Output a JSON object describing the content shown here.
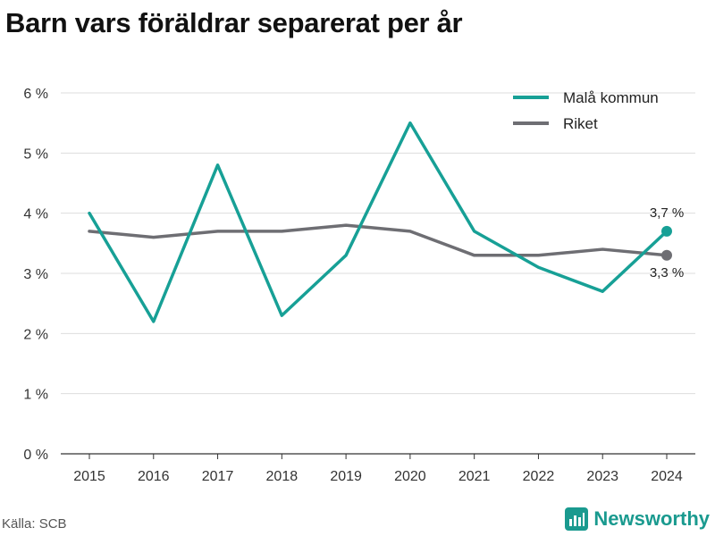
{
  "title": "Barn vars föräldrar separerat per år",
  "source": "Källa: SCB",
  "brand": {
    "name": "Newsworthy",
    "icon": "newsworthy-logo-icon",
    "color": "#1a9a8f"
  },
  "chart_data": {
    "type": "line",
    "title": "Barn vars föräldrar separerat per år",
    "x": [
      "2015",
      "2016",
      "2017",
      "2018",
      "2019",
      "2020",
      "2021",
      "2022",
      "2023",
      "2024"
    ],
    "ylim": [
      0,
      6
    ],
    "yticks": [
      "0 %",
      "1 %",
      "2 %",
      "3 %",
      "4 %",
      "5 %",
      "6 %"
    ],
    "grid": true,
    "legend": "top-right",
    "series": [
      {
        "name": "Malå kommun",
        "color": "#17a096",
        "values": [
          4.0,
          2.2,
          4.8,
          2.3,
          3.3,
          5.5,
          3.7,
          3.1,
          2.7,
          3.7
        ],
        "end_label": "3,7 %"
      },
      {
        "name": "Riket",
        "color": "#6e6e73",
        "values": [
          3.7,
          3.6,
          3.7,
          3.7,
          3.8,
          3.7,
          3.3,
          3.3,
          3.4,
          3.3
        ],
        "end_label": "3,3 %"
      }
    ]
  }
}
